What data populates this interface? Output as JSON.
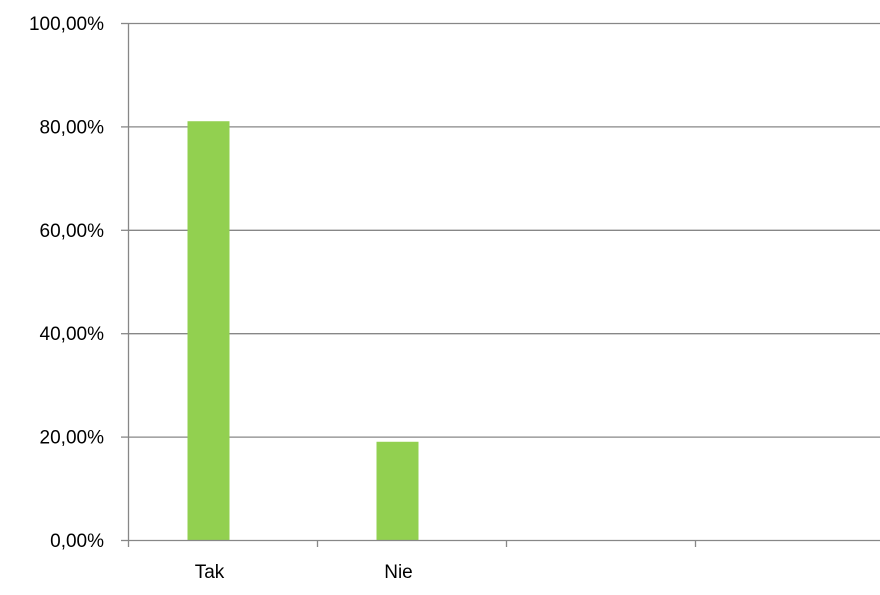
{
  "chart_data": {
    "type": "bar",
    "categories": [
      "Tak",
      "Nie",
      "",
      ""
    ],
    "values": [
      81,
      19,
      null,
      null
    ],
    "y_tick_labels": [
      "0,00%",
      "20,00%",
      "40,00%",
      "60,00%",
      "80,00%",
      "100,00%"
    ],
    "y_ticks": [
      0,
      20,
      40,
      60,
      80,
      100
    ],
    "ylim": [
      0,
      100
    ],
    "title": "",
    "xlabel": "",
    "ylabel": "",
    "grid": true,
    "legend": "none",
    "colors": {
      "bar": "#92d050",
      "grid": "#878787",
      "axis": "#878787",
      "text": "#000000"
    }
  }
}
